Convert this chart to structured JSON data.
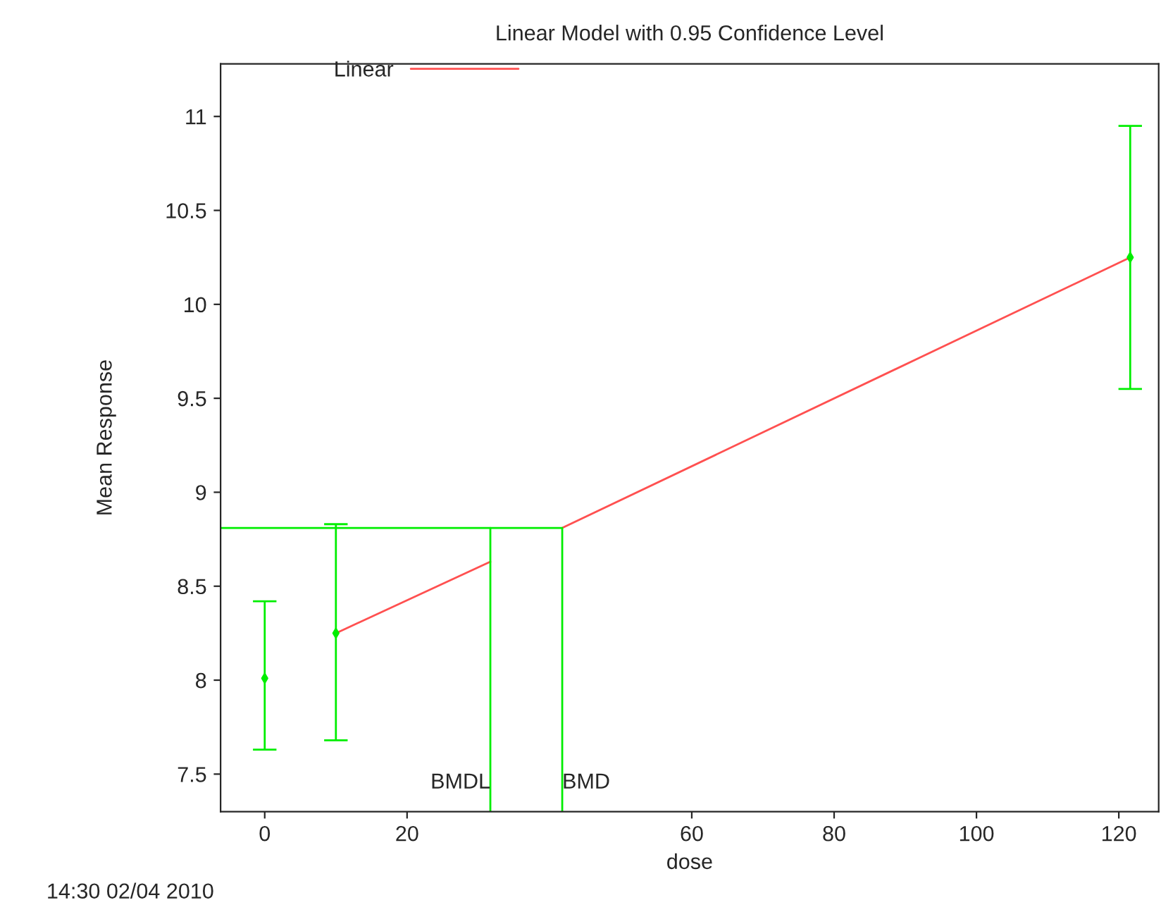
{
  "chart_data": {
    "type": "line",
    "title": "Linear Model with 0.95 Confidence Level",
    "xlabel": "dose",
    "ylabel": "Mean Response",
    "xlim": [
      -6.2,
      125.6
    ],
    "ylim": [
      7.3,
      11.28
    ],
    "xticks": [
      0,
      20,
      60,
      80,
      100,
      120
    ],
    "yticks": [
      7.5,
      8,
      8.5,
      9,
      9.5,
      10,
      10.5,
      11
    ],
    "grid": false,
    "legend": "top left",
    "series": [
      {
        "name": "Linear",
        "color": "#ff5050",
        "x": [
          10,
          31.7,
          null,
          41.8,
          121.6
        ],
        "values": [
          8.25,
          8.63,
          null,
          8.81,
          10.25
        ]
      },
      {
        "type": "scatter",
        "color": "#00ee00",
        "marker": "diamond",
        "x": [
          0,
          10,
          121.6
        ],
        "values": [
          8.01,
          8.25,
          10.25
        ],
        "errors": [
          [
            7.63,
            8.42
          ],
          [
            7.68,
            8.83
          ],
          [
            9.55,
            10.95
          ]
        ]
      },
      {
        "type": "line",
        "color": "#00ee00",
        "x": [
          -6.2,
          41.8,
          41.8
        ],
        "values": [
          8.81,
          8.81,
          7.3
        ]
      },
      {
        "type": "line",
        "color": "#00ee00",
        "x": [
          31.7,
          31.7
        ],
        "values": [
          7.3,
          8.81
        ]
      }
    ],
    "annotations": [
      {
        "text": "BMDL",
        "x": 31.7,
        "y": 7.4
      },
      {
        "text": "BMD",
        "x": 41.8,
        "y": 7.4
      },
      "14:30 02/04 2010"
    ]
  }
}
